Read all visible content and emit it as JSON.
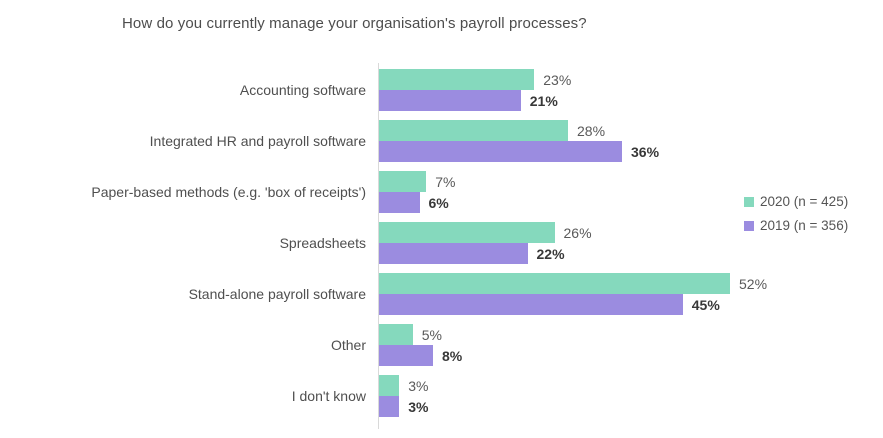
{
  "chart_data": {
    "type": "bar",
    "orientation": "horizontal",
    "title": "How do you currently manage your organisation's payroll processes?",
    "categories": [
      "Accounting software",
      "Integrated HR and payroll software",
      "Paper-based methods (e.g. 'box of receipts')",
      "Spreadsheets",
      "Stand-alone payroll software",
      "Other",
      "I don't know"
    ],
    "series": [
      {
        "name": "2020",
        "legend_label": "2020 (n = 425)",
        "color": "#85d9bd",
        "values": [
          23,
          28,
          7,
          26,
          52,
          5,
          3
        ]
      },
      {
        "name": "2019",
        "legend_label": "2019 (n = 356)",
        "color": "#9b8ce0",
        "values": [
          21,
          36,
          6,
          22,
          45,
          8,
          3
        ]
      }
    ],
    "value_suffix": "%",
    "xlabel": "",
    "ylabel": "",
    "xlim": [
      0,
      75
    ],
    "grid": false,
    "legend_position": "right",
    "axis_line_color": "#d9d9d9"
  }
}
